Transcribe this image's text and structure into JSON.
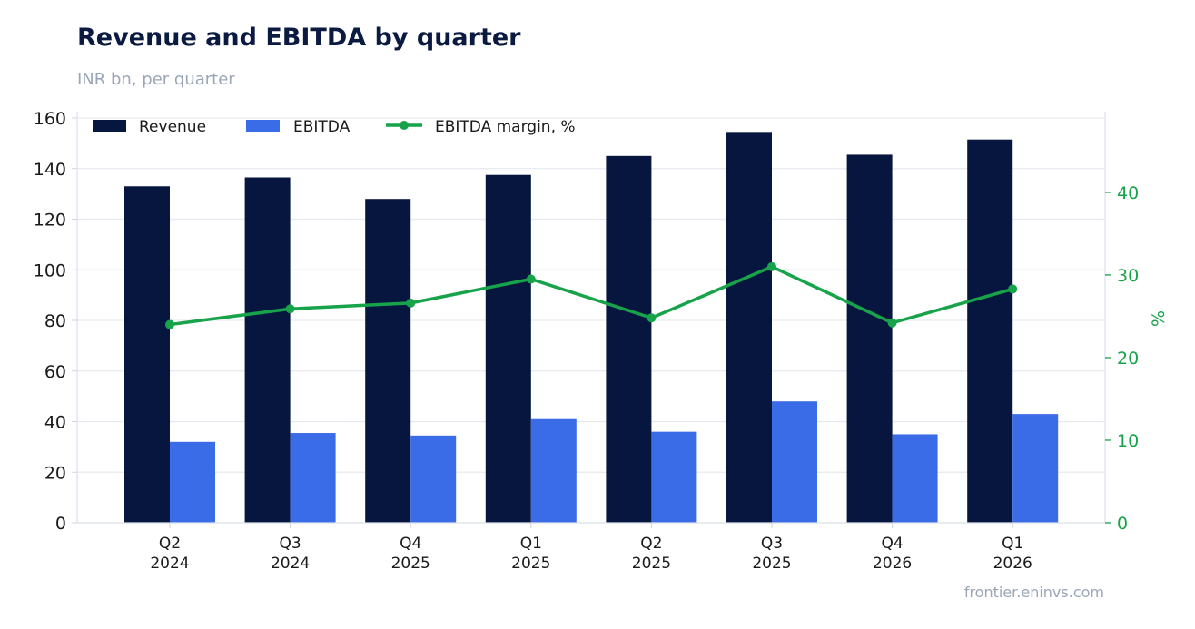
{
  "chart_data": {
    "type": "bar",
    "title": "Revenue and EBITDA by quarter",
    "subtitle": "INR bn, per quarter",
    "source": "frontier.eninvs.com",
    "categories": [
      [
        "Q2",
        "2024"
      ],
      [
        "Q3",
        "2024"
      ],
      [
        "Q4",
        "2025"
      ],
      [
        "Q1",
        "2025"
      ],
      [
        "Q2",
        "2025"
      ],
      [
        "Q3",
        "2025"
      ],
      [
        "Q4",
        "2026"
      ],
      [
        "Q1",
        "2026"
      ]
    ],
    "series": [
      {
        "name": "Revenue",
        "type": "bar",
        "axis": "left",
        "color": "#06163f",
        "values": [
          133,
          136.5,
          128,
          137.5,
          145,
          154.5,
          145.5,
          151.5
        ]
      },
      {
        "name": "EBITDA",
        "type": "bar",
        "axis": "left",
        "color": "#3b6ce8",
        "values": [
          32,
          35.5,
          34.5,
          41,
          36,
          48,
          35,
          43
        ]
      },
      {
        "name": "EBITDA margin, %",
        "type": "line",
        "axis": "right",
        "color": "#17a34a",
        "values": [
          24,
          25.9,
          26.6,
          29.5,
          24.8,
          31,
          24.2,
          28.3
        ]
      }
    ],
    "ylim": [
      0,
      160
    ],
    "yticks": [
      0,
      20,
      40,
      60,
      80,
      100,
      120,
      140,
      160
    ],
    "y2lim": [
      0,
      49
    ],
    "y2ticks": [
      0,
      10,
      20,
      30,
      40
    ],
    "y2label": "%",
    "grid": true,
    "legend": "top-left"
  }
}
